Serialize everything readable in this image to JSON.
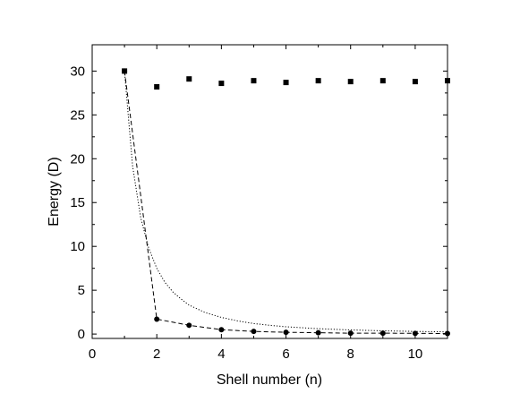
{
  "chart_data": {
    "type": "scatter",
    "title": "",
    "xlabel": "Shell number (n)",
    "ylabel": "Energy (D)",
    "xlim": [
      0,
      11
    ],
    "ylim": [
      -0.5,
      33
    ],
    "x_ticks": [
      0,
      2,
      4,
      6,
      8,
      10
    ],
    "y_ticks": [
      0,
      5,
      10,
      15,
      20,
      25,
      30
    ],
    "grid": false,
    "legend": "none",
    "series": [
      {
        "marker": "square",
        "line": "none",
        "x": [
          1,
          2,
          3,
          4,
          5,
          6,
          7,
          8,
          9,
          10,
          11
        ],
        "values": [
          30.0,
          28.2,
          29.1,
          28.6,
          28.9,
          28.7,
          28.9,
          28.8,
          28.9,
          28.8,
          28.9
        ]
      },
      {
        "marker": "circle",
        "line": "dashed",
        "x": [
          1,
          2,
          3,
          4,
          5,
          6,
          7,
          8,
          9,
          10,
          11
        ],
        "values": [
          30.0,
          1.7,
          1.0,
          0.5,
          0.3,
          0.2,
          0.15,
          0.1,
          0.1,
          0.08,
          0.06
        ]
      },
      {
        "marker": "none",
        "line": "dotted",
        "x": [
          1,
          1.25,
          1.5,
          1.75,
          2,
          2.25,
          2.5,
          2.75,
          3,
          3.5,
          4,
          4.5,
          5,
          5.5,
          6,
          7,
          8,
          9,
          10,
          11
        ],
        "values": [
          30.0,
          19.2,
          13.3,
          9.8,
          7.5,
          5.9,
          4.8,
          4.0,
          3.3,
          2.45,
          1.9,
          1.5,
          1.2,
          1.0,
          0.83,
          0.61,
          0.47,
          0.37,
          0.3,
          0.25
        ]
      }
    ]
  }
}
